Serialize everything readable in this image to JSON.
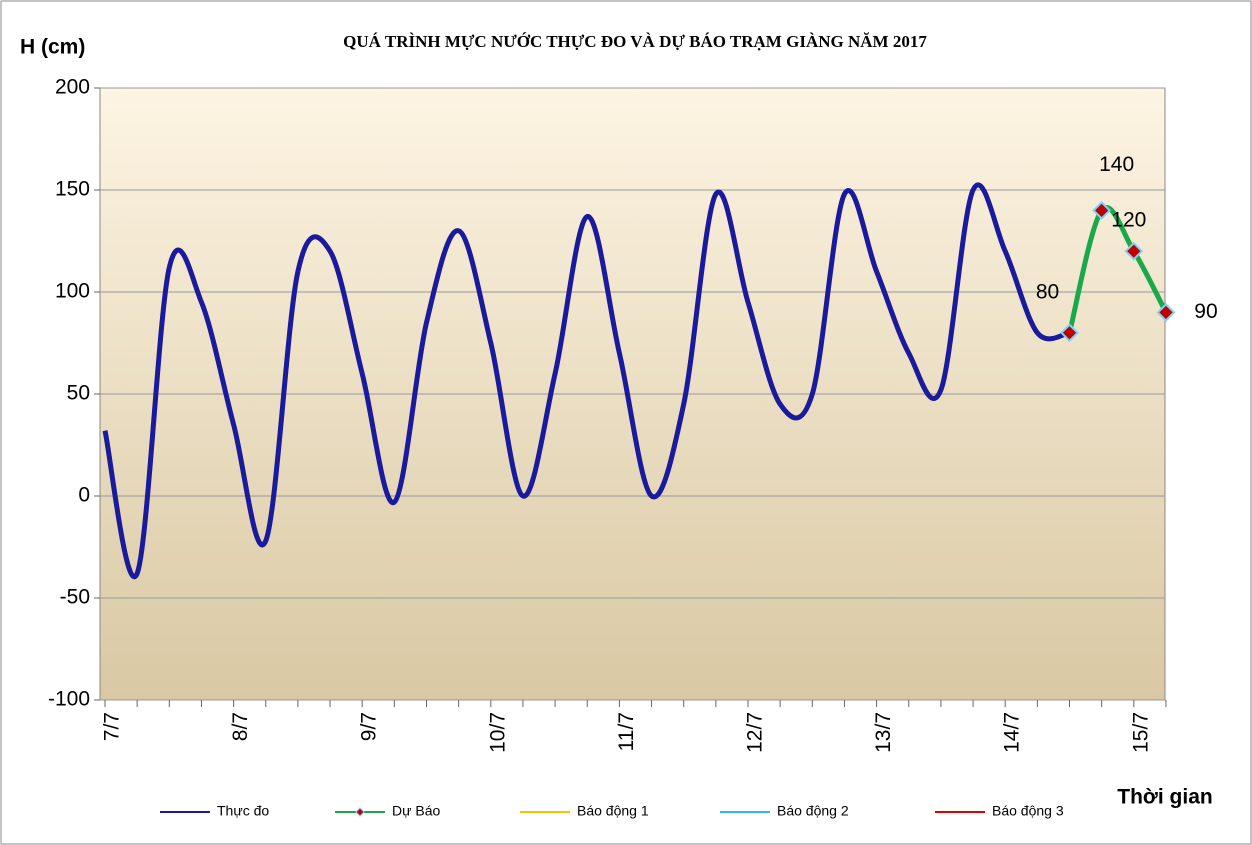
{
  "chart_data": {
    "type": "line",
    "title": "QUÁ TRÌNH MỰC NƯỚC THỰC ĐO VÀ DỰ BÁO TRẠM GIÀNG  NĂM 2017",
    "y_label": "H (cm)",
    "x_label": "Thời gian",
    "categories": [
      "7/7",
      null,
      null,
      null,
      "8/7",
      null,
      null,
      null,
      "9/7",
      null,
      null,
      null,
      "10/7",
      null,
      null,
      null,
      "11/7",
      null,
      null,
      null,
      "12/7",
      null,
      null,
      null,
      "13/7",
      null,
      null,
      null,
      "14/7",
      null,
      null,
      null,
      "15/7",
      null
    ],
    "series": [
      {
        "name": "Thực đo",
        "color": "#1a1a9c",
        "values": [
          32,
          -38,
          112,
          95,
          35,
          -22,
          110,
          120,
          60,
          -3,
          85,
          130,
          75,
          0,
          60,
          137,
          70,
          0,
          45,
          148,
          95,
          45,
          50,
          148,
          110,
          70,
          52,
          150,
          120,
          80,
          80,
          null,
          null,
          null
        ]
      },
      {
        "name": "Dự Báo",
        "color": "#1aa84a",
        "marker_color": "#c00000",
        "values": [
          null,
          null,
          null,
          null,
          null,
          null,
          null,
          null,
          null,
          null,
          null,
          null,
          null,
          null,
          null,
          null,
          null,
          null,
          null,
          null,
          null,
          null,
          null,
          null,
          null,
          null,
          null,
          null,
          null,
          null,
          80,
          140,
          120,
          90
        ]
      },
      {
        "name": "Báo động 1",
        "color": "#ffc000"
      },
      {
        "name": "Báo động 2",
        "color": "#33b5f0"
      },
      {
        "name": "Báo động 3",
        "color": "#e00000"
      }
    ],
    "ylim": [
      -100,
      200
    ],
    "yticks": [
      -100,
      -50,
      0,
      50,
      100,
      150,
      200
    ],
    "grid": true
  }
}
